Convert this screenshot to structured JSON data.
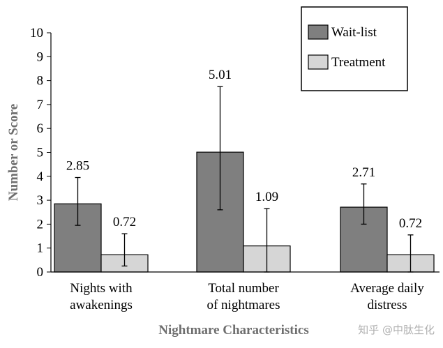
{
  "chart_data": {
    "type": "bar",
    "categories": [
      [
        "Nights with",
        "awakenings"
      ],
      [
        "Total number",
        "of nightmares"
      ],
      [
        "Average daily",
        "distress"
      ]
    ],
    "series": [
      {
        "name": "Wait-list",
        "color": "#7f7f7f",
        "values": [
          2.85,
          5.01,
          2.71
        ],
        "error_low": [
          1.95,
          2.6,
          2.0
        ],
        "error_high": [
          3.95,
          7.75,
          3.68
        ],
        "labels": [
          "2.85",
          "5.01",
          "2.71"
        ]
      },
      {
        "name": "Treatment",
        "color": "#d6d6d6",
        "values": [
          0.72,
          1.09,
          0.72
        ],
        "error_low": [
          0.25,
          0.0,
          0.0
        ],
        "error_high": [
          1.6,
          2.65,
          1.55
        ],
        "labels": [
          "0.72",
          "1.09",
          "0.72"
        ]
      }
    ],
    "xlabel": "Nightmare Characteristics",
    "ylabel": "Number or Score",
    "ylim": [
      0,
      10
    ],
    "yticks": [
      "0",
      "1",
      "2",
      "3",
      "4",
      "5",
      "6",
      "7",
      "8",
      "9",
      "10"
    ],
    "grid": false,
    "legend_position": "top-right"
  },
  "watermark": "知乎 @中肽生化"
}
